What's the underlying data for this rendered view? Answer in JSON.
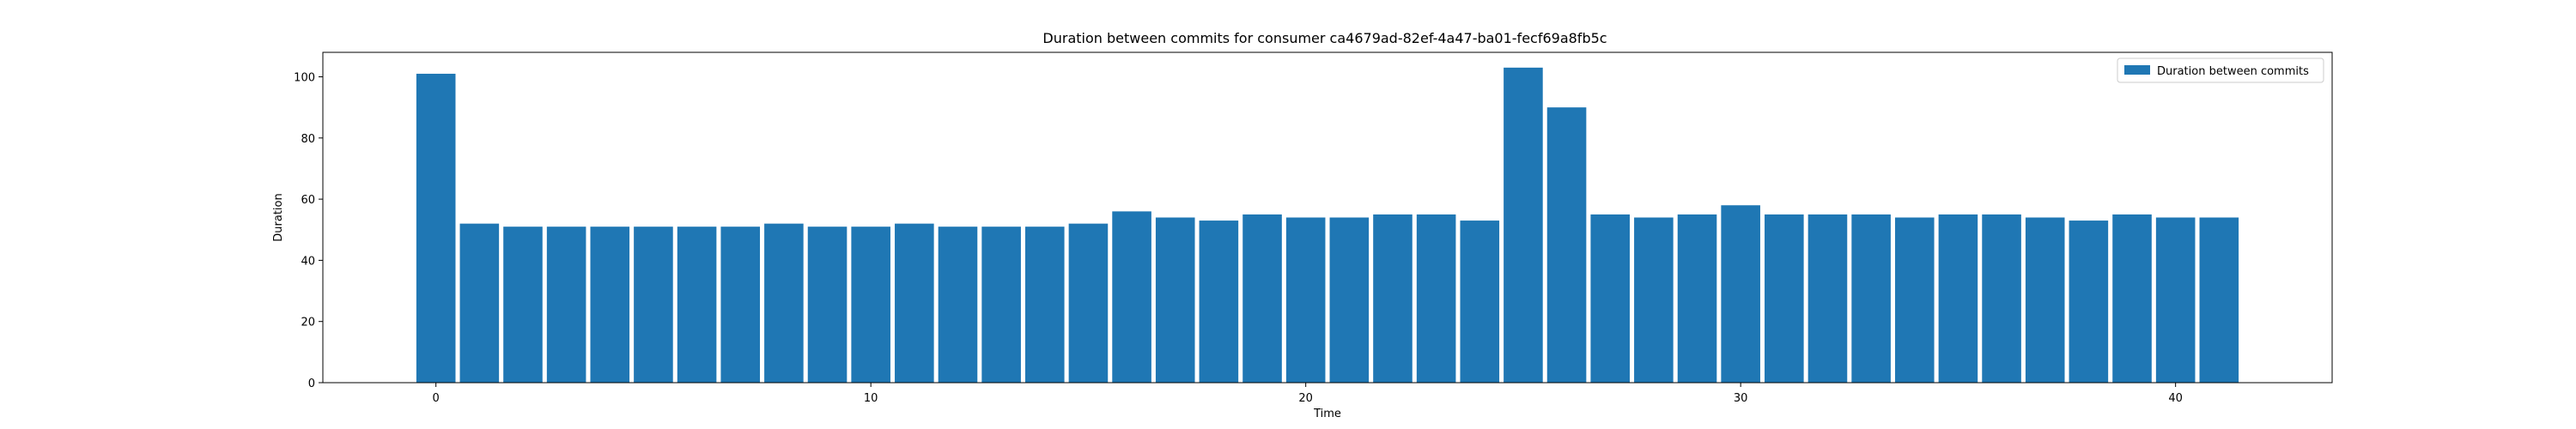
{
  "chart_data": {
    "type": "bar",
    "title": "Duration between commits for consumer ca4679ad-82ef-4a47-ba01-fecf69a8fb5c",
    "xlabel": "Time",
    "ylabel": "Duration",
    "x": [
      0,
      1,
      2,
      3,
      4,
      5,
      6,
      7,
      8,
      9,
      10,
      11,
      12,
      13,
      14,
      15,
      16,
      17,
      18,
      19,
      20,
      21,
      22,
      23,
      24,
      25,
      26,
      27,
      28,
      29,
      30,
      31,
      32,
      33,
      34,
      35,
      36,
      37,
      38,
      39,
      40,
      41
    ],
    "series": [
      {
        "name": "Duration between commits",
        "color": "#1f77b4",
        "values": [
          101,
          52,
          51,
          51,
          51,
          51,
          51,
          51,
          52,
          51,
          51,
          52,
          51,
          51,
          51,
          52,
          56,
          54,
          53,
          55,
          54,
          54,
          55,
          55,
          53,
          103,
          90,
          55,
          54,
          55,
          58,
          55,
          55,
          55,
          54,
          55,
          55,
          54,
          53,
          55,
          54,
          54
        ]
      }
    ],
    "xlim": [
      -2.6,
      43.6
    ],
    "ylim": [
      0,
      108
    ],
    "xticks": [
      0,
      10,
      20,
      30,
      40
    ],
    "yticks": [
      0,
      20,
      40,
      60,
      80,
      100
    ],
    "legend": "top-right",
    "grid": false
  }
}
